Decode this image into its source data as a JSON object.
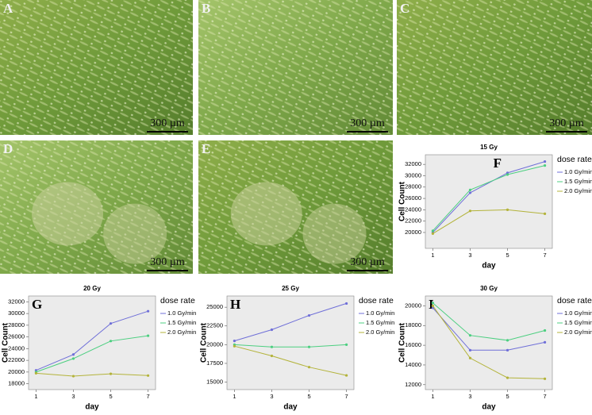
{
  "panels": [
    {
      "label": "A",
      "scale": "300 µm"
    },
    {
      "label": "B",
      "scale": "300 µm"
    },
    {
      "label": "C",
      "scale": "300 µm"
    },
    {
      "label": "D",
      "scale": "300 µm"
    },
    {
      "label": "E",
      "scale": "300 µm"
    }
  ],
  "chart_data": [
    {
      "type": "line",
      "panel": "F",
      "title": "15 Gy",
      "x_label": "day",
      "y_label": "Cell Count",
      "legend_title": "dose rate",
      "x": [
        1,
        3,
        5,
        7
      ],
      "xlim": [
        0.6,
        7.4
      ],
      "xticks": [
        1,
        3,
        5,
        7
      ],
      "ylim": [
        17200,
        33700
      ],
      "yticks": [
        20000,
        22000,
        24000,
        26000,
        28000,
        30000,
        32000
      ],
      "series": [
        {
          "name": "1.0  Gy/min",
          "color": "#6f6fd8",
          "values": [
            20000,
            27000,
            30500,
            32500
          ]
        },
        {
          "name": "1.5  Gy/min",
          "color": "#4ccf80",
          "values": [
            20300,
            27500,
            30200,
            31800
          ]
        },
        {
          "name": "2.0  Gy/min",
          "color": "#b3b33a",
          "values": [
            19800,
            23800,
            24000,
            23300
          ]
        }
      ]
    },
    {
      "type": "line",
      "panel": "G",
      "title": "20 Gy",
      "x_label": "day",
      "y_label": "Cell Count",
      "legend_title": "dose rate",
      "x": [
        1,
        3,
        5,
        7
      ],
      "xlim": [
        0.6,
        7.4
      ],
      "xticks": [
        1,
        3,
        5,
        7
      ],
      "ylim": [
        17000,
        33000
      ],
      "yticks": [
        18000,
        20000,
        22000,
        24000,
        26000,
        28000,
        30000,
        32000
      ],
      "series": [
        {
          "name": "1.0  Gy/min",
          "color": "#6f6fd8",
          "values": [
            20300,
            23000,
            28300,
            30400
          ]
        },
        {
          "name": "1.5  Gy/min",
          "color": "#4ccf80",
          "values": [
            20000,
            22300,
            25300,
            26200
          ]
        },
        {
          "name": "2.0  Gy/min",
          "color": "#b3b33a",
          "values": [
            19800,
            19300,
            19700,
            19400
          ]
        }
      ]
    },
    {
      "type": "line",
      "panel": "H",
      "title": "25 Gy",
      "x_label": "day",
      "y_label": "Cell Count",
      "legend_title": "dose rate",
      "x": [
        1,
        3,
        5,
        7
      ],
      "xlim": [
        0.6,
        7.4
      ],
      "xticks": [
        1,
        3,
        5,
        7
      ],
      "ylim": [
        14000,
        26500
      ],
      "yticks": [
        15000,
        17500,
        20000,
        22500,
        25000
      ],
      "series": [
        {
          "name": "1.0  Gy/min",
          "color": "#6f6fd8",
          "values": [
            20500,
            22000,
            23900,
            25500
          ]
        },
        {
          "name": "1.5  Gy/min",
          "color": "#4ccf80",
          "values": [
            20000,
            19700,
            19700,
            20000
          ]
        },
        {
          "name": "2.0  Gy/min",
          "color": "#b3b33a",
          "values": [
            19800,
            18500,
            17000,
            15900
          ]
        }
      ]
    },
    {
      "type": "line",
      "panel": "I",
      "title": "30 Gy",
      "x_label": "day",
      "y_label": "Cell Count",
      "legend_title": "dose rate",
      "x": [
        1,
        3,
        5,
        7
      ],
      "xlim": [
        0.6,
        7.4
      ],
      "xticks": [
        1,
        3,
        5,
        7
      ],
      "ylim": [
        11500,
        21000
      ],
      "yticks": [
        12000,
        14000,
        16000,
        18000,
        20000
      ],
      "series": [
        {
          "name": "1.0  Gy/min",
          "color": "#6f6fd8",
          "values": [
            19800,
            15500,
            15500,
            16300
          ]
        },
        {
          "name": "1.5  Gy/min",
          "color": "#4ccf80",
          "values": [
            20300,
            17000,
            16500,
            17500
          ]
        },
        {
          "name": "2.0  Gy/min",
          "color": "#b3b33a",
          "values": [
            20000,
            14700,
            12700,
            12600
          ]
        }
      ]
    }
  ]
}
